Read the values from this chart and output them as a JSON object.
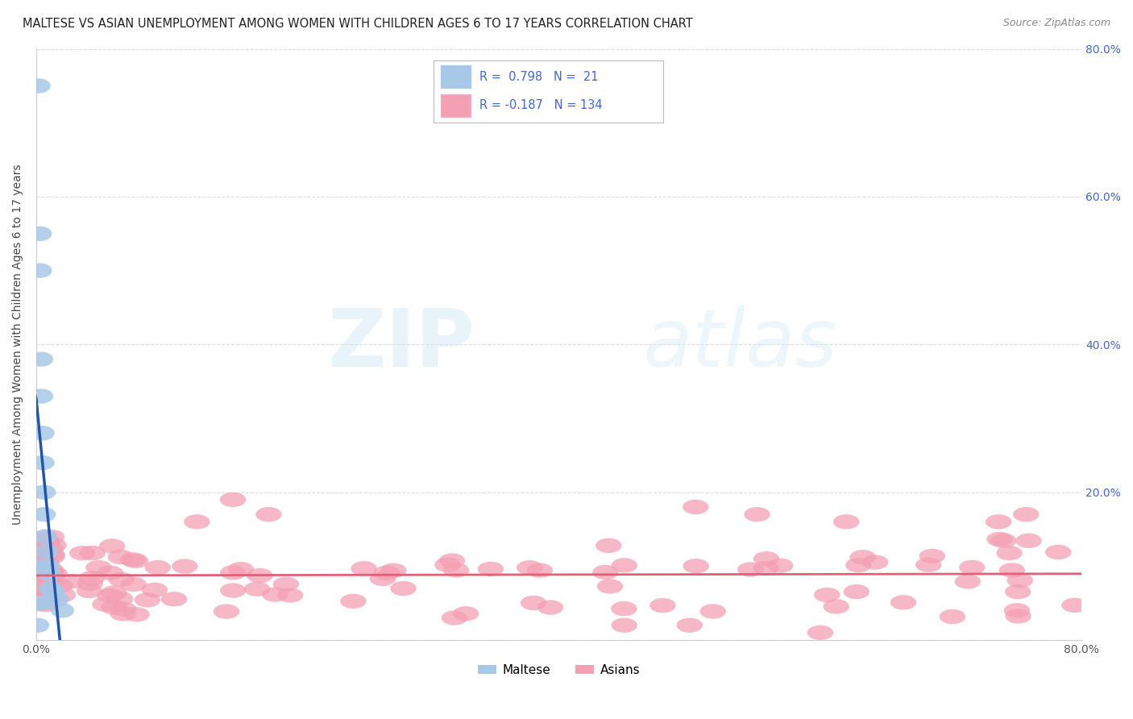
{
  "title": "MALTESE VS ASIAN UNEMPLOYMENT AMONG WOMEN WITH CHILDREN AGES 6 TO 17 YEARS CORRELATION CHART",
  "source": "Source: ZipAtlas.com",
  "ylabel": "Unemployment Among Women with Children Ages 6 to 17 years",
  "xlim": [
    0.0,
    0.8
  ],
  "ylim": [
    0.0,
    0.8
  ],
  "xticks": [
    0.0,
    0.1,
    0.2,
    0.3,
    0.4,
    0.5,
    0.6,
    0.7,
    0.8
  ],
  "yticks": [
    0.0,
    0.2,
    0.4,
    0.6,
    0.8
  ],
  "xtick_labels": [
    "0.0%",
    "",
    "",
    "",
    "",
    "",
    "",
    "",
    "80.0%"
  ],
  "ytick_labels": [
    "",
    "20.0%",
    "40.0%",
    "60.0%",
    "80.0%"
  ],
  "maltese_R": 0.798,
  "maltese_N": 21,
  "asian_R": -0.187,
  "asian_N": 134,
  "maltese_color": "#a8c8e8",
  "maltese_line_color": "#2255aa",
  "asian_color": "#f4a0b4",
  "asian_line_color": "#e0607a",
  "background_color": "#ffffff",
  "watermark_zip": "ZIP",
  "watermark_atlas": "atlas",
  "legend_label_maltese": "Maltese",
  "legend_label_asian": "Asians",
  "grid_color": "#dddddd",
  "legend_R_color": "#4466cc"
}
